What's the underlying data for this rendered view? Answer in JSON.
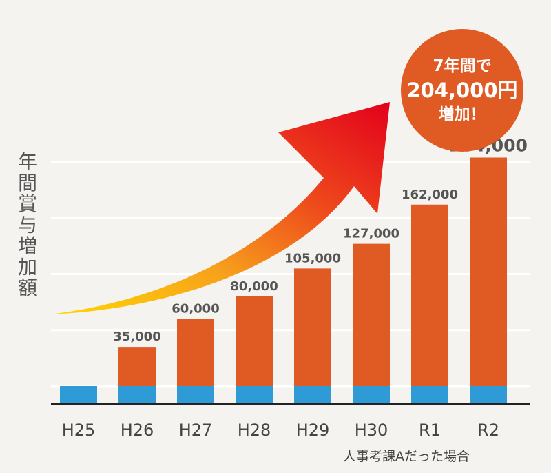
{
  "chart_data": {
    "type": "bar",
    "categories": [
      "H25",
      "H26",
      "H27",
      "H28",
      "H29",
      "H30",
      "R1",
      "R2"
    ],
    "series": [
      {
        "values": [
          0,
          0,
          0,
          0,
          0,
          0,
          0,
          0
        ]
      },
      {
        "values": [
          0,
          35000,
          60000,
          80000,
          105000,
          127000,
          162000,
          204000
        ]
      }
    ],
    "data_labels": [
      "",
      "35,000",
      "60,000",
      "80,000",
      "105,000",
      "127,000",
      "162,000",
      "204,000"
    ],
    "ylabel": "年間賞与増加額",
    "ylim": [
      -16000,
      220000
    ],
    "grid": true,
    "annotation": {
      "line1": "7年間で",
      "line2": "204,000円",
      "line3": "増加！"
    },
    "footnote": "人事考課Aだった場合",
    "colors": {
      "base": "#2e9bd6",
      "increase": "#e05a24",
      "grid": "#ffffff",
      "axis": "#222222",
      "background": "#f5f3ef"
    }
  }
}
